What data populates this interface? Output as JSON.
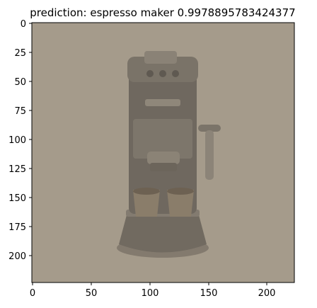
{
  "figure": {
    "title": "prediction: espresso maker 0.9978895783424377",
    "x_tick_labels": [
      "0",
      "50",
      "100",
      "150",
      "200"
    ],
    "y_tick_labels": [
      "0",
      "25",
      "50",
      "75",
      "100",
      "125",
      "150",
      "175",
      "200"
    ]
  },
  "image": {
    "subject": "espresso-maker",
    "background_color": "#a59b8b",
    "machine_color": "#6f685f",
    "cup_color": "#8a7d6a"
  }
}
